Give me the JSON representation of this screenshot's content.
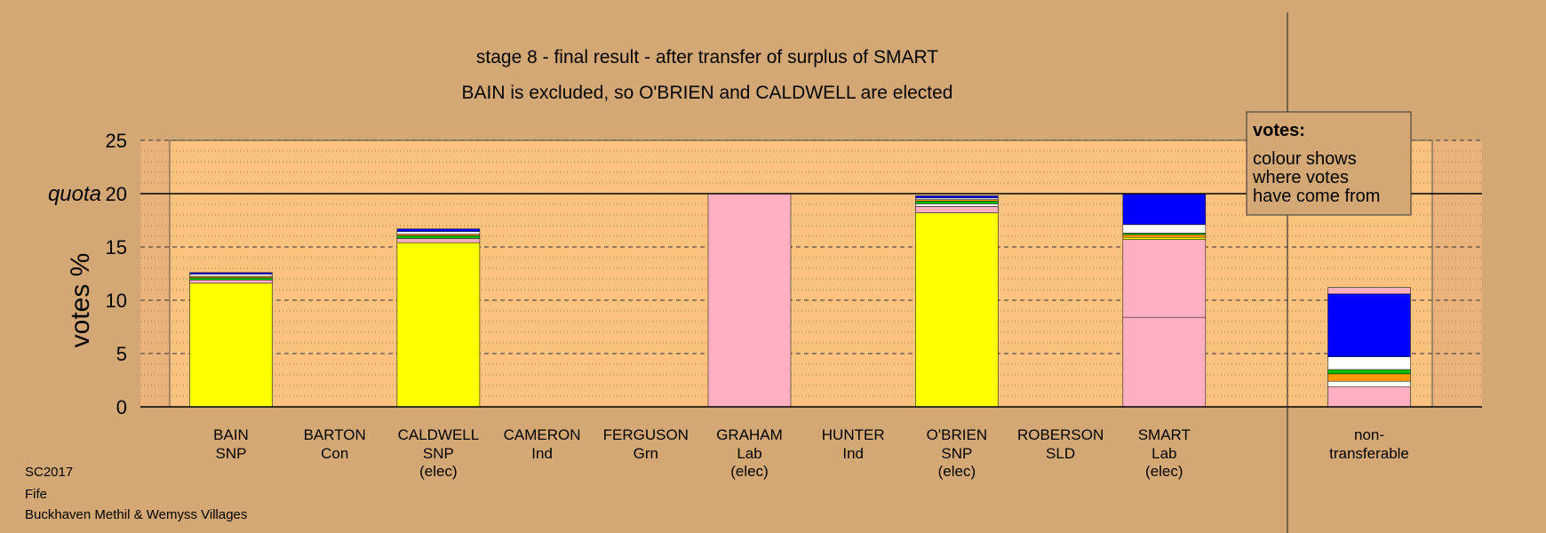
{
  "chart_data": {
    "type": "bar",
    "stacked": true,
    "title": "stage 8 - final result - after transfer of surplus of SMART",
    "subtitle": "BAIN is excluded, so O'BRIEN and CALDWELL are elected",
    "ylabel": "votes %",
    "ylim": [
      0,
      25
    ],
    "yticks": [
      "0",
      "5",
      "10",
      "15",
      "20",
      "25"
    ],
    "quota": {
      "label": "quota",
      "value": 20
    },
    "legend": {
      "title": "votes:",
      "lines": [
        "colour shows",
        "where votes",
        "have come from"
      ],
      "placement": "top-right"
    },
    "colors": {
      "snp": "#FFFF00",
      "lab": "#FFB0C0",
      "con": "#0000FF",
      "ind": "#FFFFFF",
      "grn": "#00C000",
      "sld": "#FF9900",
      "other": "#000000"
    },
    "candidates": [
      {
        "name": "BAIN",
        "party": "SNP",
        "status": "",
        "segments": [
          {
            "source": "snp",
            "value": 11.6
          },
          {
            "source": "lab",
            "value": 0.3
          },
          {
            "source": "grn",
            "value": 0.2
          },
          {
            "source": "sld",
            "value": 0.15
          },
          {
            "source": "ind",
            "value": 0.2
          },
          {
            "source": "con",
            "value": 0.15
          }
        ]
      },
      {
        "name": "BARTON",
        "party": "Con",
        "status": "",
        "segments": []
      },
      {
        "name": "CALDWELL",
        "party": "SNP",
        "status": "(elec)",
        "segments": [
          {
            "source": "snp",
            "value": 15.4
          },
          {
            "source": "lab",
            "value": 0.4
          },
          {
            "source": "grn",
            "value": 0.25
          },
          {
            "source": "sld",
            "value": 0.15
          },
          {
            "source": "ind",
            "value": 0.25
          },
          {
            "source": "con",
            "value": 0.25
          }
        ]
      },
      {
        "name": "CAMERON",
        "party": "Ind",
        "status": "",
        "segments": []
      },
      {
        "name": "FERGUSON",
        "party": "Grn",
        "status": "",
        "segments": []
      },
      {
        "name": "GRAHAM",
        "party": "Lab",
        "status": "(elec)",
        "segments": [
          {
            "source": "lab",
            "value": 20.0
          }
        ]
      },
      {
        "name": "HUNTER",
        "party": "Ind",
        "status": "",
        "segments": []
      },
      {
        "name": "O'BRIEN",
        "party": "SNP",
        "status": "(elec)",
        "segments": [
          {
            "source": "snp",
            "value": 18.2
          },
          {
            "source": "lab",
            "value": 0.6
          },
          {
            "source": "ind",
            "value": 0.25
          },
          {
            "source": "grn",
            "value": 0.25
          },
          {
            "source": "sld",
            "value": 0.15
          },
          {
            "source": "ind",
            "value": 0.15
          },
          {
            "source": "con",
            "value": 0.2
          }
        ]
      },
      {
        "name": "ROBERSON",
        "party": "SLD",
        "status": "",
        "segments": []
      },
      {
        "name": "SMART",
        "party": "Lab",
        "status": "(elec)",
        "segments": [
          {
            "source": "lab",
            "value": 8.4
          },
          {
            "source": "lab",
            "value": 7.3
          },
          {
            "source": "snp",
            "value": 0.2
          },
          {
            "source": "sld",
            "value": 0.25
          },
          {
            "source": "grn",
            "value": 0.15
          },
          {
            "source": "ind",
            "value": 0.8
          },
          {
            "source": "con",
            "value": 2.9
          }
        ]
      }
    ],
    "nontransferable": {
      "label_lines": [
        "non-",
        "transferable"
      ],
      "segments": [
        {
          "source": "lab",
          "value": 1.9
        },
        {
          "source": "ind",
          "value": 0.5
        },
        {
          "source": "sld",
          "value": 0.7
        },
        {
          "source": "grn",
          "value": 0.4
        },
        {
          "source": "ind",
          "value": 1.2
        },
        {
          "source": "con",
          "value": 5.9
        },
        {
          "source": "lab",
          "value": 0.6
        }
      ]
    }
  },
  "footer": {
    "election": "SC2017",
    "council": "Fife",
    "ward": "Buckhaven Methil & Wemyss Villages"
  }
}
